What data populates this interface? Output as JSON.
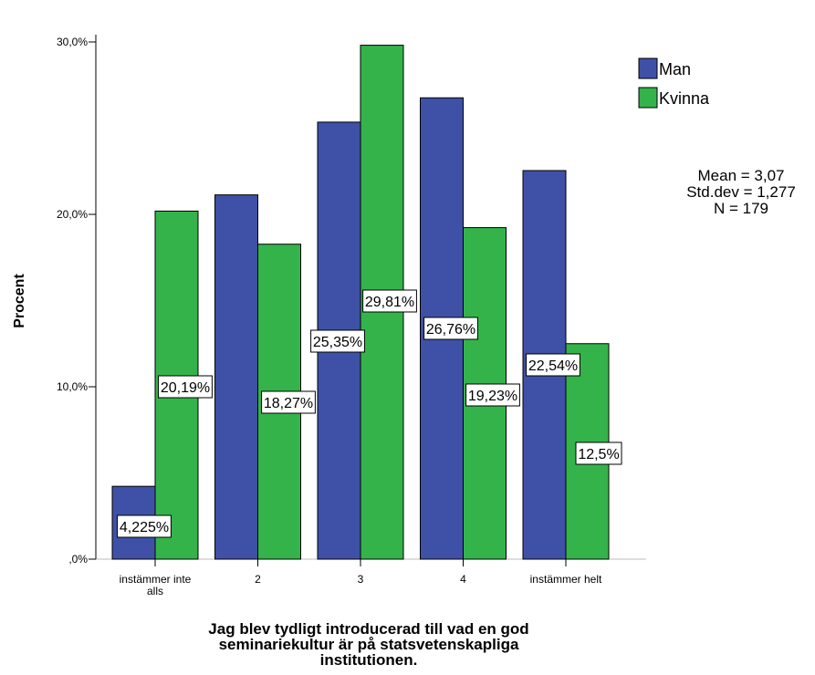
{
  "chart_data": {
    "type": "bar",
    "categories": [
      [
        "instämmer inte",
        "alls"
      ],
      [
        "2"
      ],
      [
        "3"
      ],
      [
        "4"
      ],
      [
        "instämmer helt"
      ]
    ],
    "series": [
      {
        "name": "Man",
        "color": "#3f51a6",
        "values": [
          4.225,
          21.13,
          25.35,
          26.76,
          22.54
        ],
        "labels": [
          "4,225%",
          "",
          "25,35%",
          "26,76%",
          "22,54%"
        ]
      },
      {
        "name": "Kvinna",
        "color": "#34b34a",
        "values": [
          20.19,
          18.27,
          29.81,
          19.23,
          12.5
        ],
        "labels": [
          "20,19%",
          "18,27%",
          "29,81%",
          "19,23%",
          "12,5%"
        ]
      }
    ],
    "ylabel": "Procent",
    "xlabel": [
      "Jag blev tydligt introducerad till vad en god",
      "seminariekultur är på statsvetenskapliga",
      "institutionen."
    ],
    "ylim": [
      0,
      30
    ],
    "yticks": [
      {
        "value": 0,
        "label": ",0%"
      },
      {
        "value": 10,
        "label": "10,0%"
      },
      {
        "value": 20,
        "label": "20,0%"
      },
      {
        "value": 30,
        "label": "30,0%"
      }
    ],
    "grid": false,
    "legend_position": "top-right",
    "stats": [
      "Mean = 3,07",
      "Std.dev = 1,277",
      "N = 179"
    ]
  }
}
